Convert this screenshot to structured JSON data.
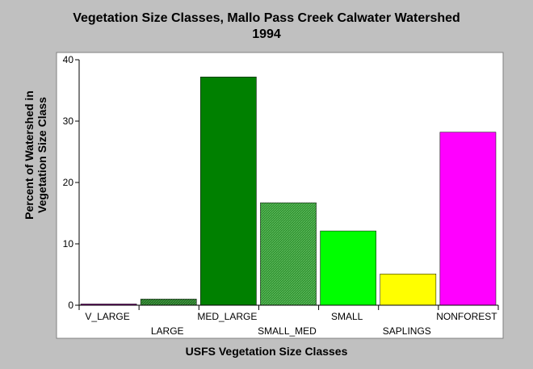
{
  "chart_data": {
    "type": "bar",
    "title": "Vegetation Size Classes, Mallo Pass Creek Calwater Watershed",
    "subtitle": "1994",
    "xlabel": "USFS Vegetation Size Classes",
    "ylabel_line1": "Percent of Watershed in",
    "ylabel_line2": "Vegetation Size Class",
    "categories": [
      "V_LARGE",
      "LARGE",
      "MED_LARGE",
      "SMALL_MED",
      "SMALL",
      "SAPLINGS",
      "NONFOREST"
    ],
    "values": [
      0.2,
      1.0,
      37.2,
      16.7,
      12.1,
      5.1,
      28.2
    ],
    "colors": [
      "#800080",
      "#2e6b2e",
      "#008000",
      "#3f9f3f",
      "#00ff00",
      "#ffff00",
      "#ff00ff"
    ],
    "hatched": [
      false,
      true,
      false,
      true,
      false,
      false,
      false
    ],
    "ylim": [
      0,
      40
    ],
    "yticks": [
      0,
      10,
      20,
      30,
      40
    ],
    "grid": false
  }
}
